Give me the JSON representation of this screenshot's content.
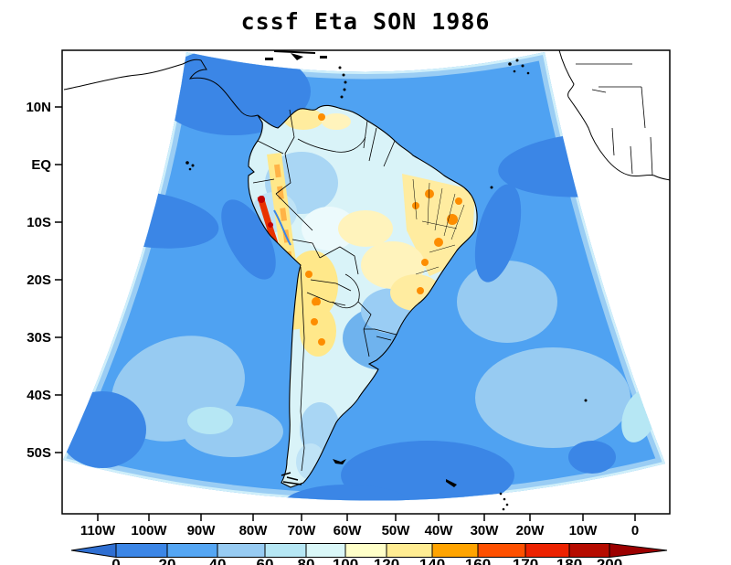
{
  "header": {
    "title": "cssf Eta SON 1986"
  },
  "chart_data": {
    "type": "heatmap",
    "title": "cssf Eta SON 1986",
    "description": "Filled-contour field over a fan-shaped Eta model domain covering South America and adjacent oceans",
    "y_axis": {
      "tick_labels": [
        "10N",
        "EQ",
        "10S",
        "20S",
        "30S",
        "40S",
        "50S"
      ]
    },
    "x_axis": {
      "tick_labels": [
        "110W",
        "100W",
        "90W",
        "80W",
        "70W",
        "60W",
        "50W",
        "40W",
        "30W",
        "20W",
        "10W",
        "0"
      ]
    },
    "colorbar": {
      "tick_labels": [
        "0",
        "20",
        "40",
        "60",
        "80",
        "100",
        "120",
        "140",
        "160",
        "170",
        "180",
        "200"
      ],
      "colors": [
        "#2f6fd2",
        "#3c86e6",
        "#55a6f3",
        "#97cbf2",
        "#b6e7f4",
        "#daf7f8",
        "#ffffc8",
        "#ffec92",
        "#ffa400",
        "#fe5000",
        "#ec2200",
        "#b60c00",
        "#9c0000"
      ],
      "has_underflow_arrow": true,
      "has_overflow_arrow": true
    },
    "features": [
      {
        "region": "open ocean over most of the fan domain",
        "shade": "medium blue",
        "value_range": "20-40"
      },
      {
        "region": "equatorial east Pacific, equatorial Atlantic band, far-south ocean patches",
        "shade": "darker blue",
        "value_range": "0-20"
      },
      {
        "region": "domain edges, ocean SW of Chile and SE of Brazil/Argentina",
        "shade": "light blue",
        "value_range": "40-100"
      },
      {
        "region": "continental interior (Amazon, Argentina, Patagonia)",
        "shade": "pale cyan to cream",
        "value_range": "60-120"
      },
      {
        "region": "Andes belt, Bolivia, central and northeast Brazil, north Venezuela",
        "shade": "yellow-orange",
        "value_range": "120-160"
      },
      {
        "region": "Peru coastal strip and northeast Brazil spots",
        "shade": "red to dark red",
        "value_range": "160-200+"
      }
    ]
  }
}
